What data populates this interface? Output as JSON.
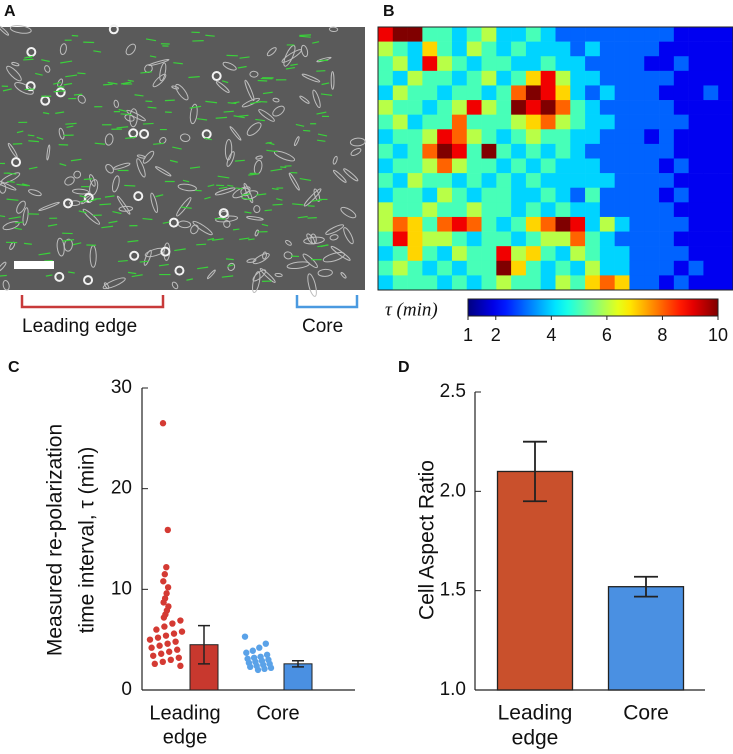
{
  "chart_data": [
    {
      "type": "image",
      "label": "A",
      "brackets": [
        {
          "label": "Leading edge",
          "color": "#c83a3a"
        },
        {
          "label": "Core",
          "color": "#4a9ae0"
        }
      ]
    },
    {
      "type": "heatmap",
      "label": "B",
      "colorbar_label": "τ (min)",
      "clim": [
        1,
        10
      ],
      "cticks": [
        1,
        2,
        4,
        6,
        8,
        10
      ],
      "values": [
        [
          9,
          10,
          10,
          5,
          5,
          4,
          5,
          6,
          4,
          4,
          5,
          4,
          3,
          3,
          3,
          3,
          3,
          3,
          3,
          3,
          2,
          2,
          2,
          2
        ],
        [
          6,
          5,
          4,
          7,
          5,
          4,
          6,
          5,
          4,
          5,
          4,
          4,
          4,
          3,
          4,
          3,
          3,
          3,
          3,
          2,
          2,
          2,
          2,
          2
        ],
        [
          5,
          6,
          4,
          9,
          6,
          5,
          4,
          5,
          5,
          4,
          4,
          5,
          4,
          4,
          3,
          3,
          3,
          3,
          2,
          2,
          3,
          2,
          2,
          2
        ],
        [
          5,
          4,
          6,
          5,
          5,
          4,
          5,
          6,
          4,
          5,
          7,
          9,
          6,
          4,
          4,
          3,
          3,
          3,
          3,
          3,
          2,
          2,
          2,
          2
        ],
        [
          4,
          6,
          5,
          5,
          4,
          5,
          5,
          4,
          5,
          8,
          10,
          9,
          7,
          4,
          3,
          4,
          3,
          3,
          3,
          2,
          2,
          2,
          3,
          2
        ],
        [
          6,
          5,
          5,
          4,
          5,
          6,
          9,
          6,
          5,
          10,
          9,
          10,
          8,
          5,
          4,
          3,
          3,
          3,
          3,
          3,
          2,
          2,
          2,
          2
        ],
        [
          5,
          6,
          4,
          5,
          5,
          8,
          5,
          5,
          5,
          6,
          7,
          8,
          6,
          5,
          4,
          4,
          3,
          3,
          3,
          3,
          3,
          2,
          2,
          2
        ],
        [
          4,
          5,
          5,
          6,
          9,
          8,
          6,
          5,
          4,
          5,
          6,
          5,
          5,
          4,
          4,
          3,
          3,
          3,
          2,
          3,
          2,
          2,
          2,
          2
        ],
        [
          5,
          4,
          5,
          8,
          10,
          9,
          5,
          10,
          5,
          4,
          5,
          4,
          5,
          4,
          3,
          3,
          3,
          3,
          3,
          3,
          2,
          2,
          2,
          2
        ],
        [
          4,
          5,
          5,
          6,
          8,
          6,
          5,
          5,
          4,
          5,
          4,
          5,
          4,
          4,
          4,
          3,
          3,
          3,
          3,
          2,
          3,
          2,
          2,
          2
        ],
        [
          5,
          4,
          6,
          5,
          5,
          4,
          5,
          4,
          5,
          4,
          5,
          4,
          4,
          4,
          4,
          4,
          3,
          3,
          3,
          3,
          2,
          2,
          2,
          2
        ],
        [
          4,
          5,
          5,
          4,
          6,
          5,
          4,
          5,
          5,
          4,
          4,
          5,
          4,
          3,
          5,
          3,
          3,
          3,
          3,
          2,
          3,
          2,
          2,
          2
        ],
        [
          6,
          5,
          5,
          6,
          5,
          5,
          6,
          5,
          5,
          4,
          5,
          4,
          5,
          4,
          4,
          3,
          3,
          3,
          3,
          3,
          2,
          2,
          2,
          2
        ],
        [
          6,
          8,
          7,
          5,
          8,
          9,
          8,
          5,
          4,
          5,
          7,
          8,
          10,
          9,
          4,
          6,
          4,
          3,
          3,
          3,
          3,
          2,
          2,
          2
        ],
        [
          5,
          9,
          7,
          6,
          6,
          5,
          4,
          5,
          5,
          4,
          5,
          6,
          6,
          8,
          5,
          4,
          3,
          3,
          3,
          3,
          2,
          2,
          2,
          2
        ],
        [
          4,
          5,
          7,
          5,
          4,
          6,
          5,
          5,
          9,
          6,
          7,
          5,
          4,
          6,
          5,
          4,
          4,
          3,
          3,
          3,
          3,
          2,
          2,
          2
        ],
        [
          5,
          6,
          5,
          4,
          5,
          4,
          5,
          5,
          10,
          7,
          5,
          4,
          5,
          4,
          6,
          4,
          4,
          3,
          3,
          3,
          2,
          3,
          2,
          2
        ],
        [
          4,
          5,
          5,
          5,
          4,
          5,
          4,
          5,
          6,
          5,
          5,
          4,
          6,
          5,
          7,
          8,
          7,
          3,
          3,
          2,
          3,
          2,
          2,
          2
        ]
      ]
    },
    {
      "type": "bar-scatter",
      "label": "C",
      "ylabel": [
        "Measured re-polarization",
        "time interval, τ (min)"
      ],
      "categories": [
        [
          "Leading",
          "edge"
        ],
        [
          "Core"
        ]
      ],
      "ylim": [
        0,
        30
      ],
      "yticks": [
        0,
        10,
        20,
        30
      ],
      "values": [
        4.5,
        2.6
      ],
      "errors": [
        1.9,
        0.3
      ],
      "colors": [
        "#c8382e",
        "#4a90e2"
      ],
      "point_colors": [
        "#d43a33",
        "#5aa2e8"
      ],
      "points": [
        [
          26.5,
          15.9,
          12.2,
          11.5,
          10.8,
          10.2,
          9.6,
          9.1,
          8.7,
          8.3,
          7.9,
          7.5,
          7.2,
          6.9,
          6.6,
          6.3,
          6.0,
          5.8,
          5.6,
          5.4,
          5.2,
          5.0,
          4.8,
          4.6,
          4.4,
          4.2,
          4.0,
          3.8,
          3.6,
          3.4,
          3.2,
          3.0,
          2.8,
          2.6,
          2.4
        ],
        [
          5.3,
          4.6,
          4.2,
          3.9,
          3.7,
          3.5,
          3.3,
          3.2,
          3.1,
          3.0,
          2.9,
          2.8,
          2.7,
          2.6,
          2.5,
          2.4,
          2.3,
          2.2,
          2.1,
          2.0
        ]
      ]
    },
    {
      "type": "bar",
      "label": "D",
      "ylabel": "Cell Aspect Ratio",
      "categories": [
        [
          "Leading",
          "edge"
        ],
        [
          "Core"
        ]
      ],
      "ylim": [
        1,
        2.5
      ],
      "yticks": [
        {
          "value": 1,
          "label": "1.0"
        },
        {
          "value": 1.5,
          "label": "1.5"
        },
        {
          "value": 2,
          "label": "2.0"
        },
        {
          "value": 2.5,
          "label": "2.5"
        }
      ],
      "values": [
        2.1,
        1.52
      ],
      "errors": [
        0.15,
        0.05
      ],
      "colors": [
        "#c9502c",
        "#4a90e2"
      ]
    }
  ]
}
